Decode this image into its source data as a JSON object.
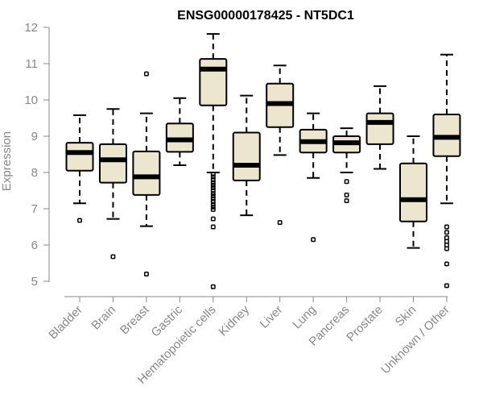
{
  "chart_data": {
    "type": "boxplot",
    "title": "ENSG00000178425 - NT5DC1",
    "xlabel": "",
    "ylabel": "Expression",
    "ylim": [
      4.8,
      12.1
    ],
    "yticks": [
      5,
      6,
      7,
      8,
      9,
      10,
      11,
      12
    ],
    "categories": [
      "Bladder",
      "Brain",
      "Breast",
      "Gastric",
      "Hematopoietic cells",
      "Kidney",
      "Liver",
      "Lung",
      "Pancreas",
      "Prostate",
      "Skin",
      "Unknown / Other"
    ],
    "series": [
      {
        "whisker_low": 7.15,
        "q1": 8.05,
        "median": 8.55,
        "q3": 8.82,
        "whisker_high": 9.58,
        "outliers": [
          6.68
        ]
      },
      {
        "whisker_low": 6.72,
        "q1": 7.72,
        "median": 8.35,
        "q3": 8.78,
        "whisker_high": 9.75,
        "outliers": [
          5.68
        ]
      },
      {
        "whisker_low": 6.52,
        "q1": 7.38,
        "median": 7.88,
        "q3": 8.58,
        "whisker_high": 9.63,
        "outliers": [
          10.72,
          5.2
        ]
      },
      {
        "whisker_low": 8.2,
        "q1": 8.57,
        "median": 8.9,
        "q3": 9.35,
        "whisker_high": 10.05,
        "outliers": []
      },
      {
        "whisker_low": 8.0,
        "q1": 9.85,
        "median": 10.85,
        "q3": 11.13,
        "whisker_high": 11.82,
        "outliers": [
          7.95,
          7.88,
          7.8,
          7.72,
          7.65,
          7.58,
          7.5,
          7.42,
          7.35,
          7.28,
          7.2,
          7.12,
          7.05,
          6.98,
          6.72,
          6.5,
          4.85
        ]
      },
      {
        "whisker_low": 6.82,
        "q1": 7.78,
        "median": 8.2,
        "q3": 9.1,
        "whisker_high": 10.12,
        "outliers": []
      },
      {
        "whisker_low": 8.48,
        "q1": 9.25,
        "median": 9.9,
        "q3": 10.45,
        "whisker_high": 10.95,
        "outliers": [
          6.62
        ]
      },
      {
        "whisker_low": 7.85,
        "q1": 8.55,
        "median": 8.85,
        "q3": 9.18,
        "whisker_high": 9.63,
        "outliers": [
          6.15
        ]
      },
      {
        "whisker_low": 8.0,
        "q1": 8.55,
        "median": 8.82,
        "q3": 9.0,
        "whisker_high": 9.22,
        "outliers": [
          7.75,
          7.38,
          7.22
        ]
      },
      {
        "whisker_low": 8.1,
        "q1": 8.78,
        "median": 9.38,
        "q3": 9.63,
        "whisker_high": 10.38,
        "outliers": []
      },
      {
        "whisker_low": 5.92,
        "q1": 6.65,
        "median": 7.25,
        "q3": 8.25,
        "whisker_high": 9.0,
        "outliers": []
      },
      {
        "whisker_low": 7.15,
        "q1": 8.45,
        "median": 8.97,
        "q3": 9.6,
        "whisker_high": 11.25,
        "outliers": [
          6.5,
          6.35,
          6.2,
          6.1,
          6.0,
          5.9,
          5.48,
          4.88
        ]
      }
    ],
    "box_fill": "#ede6cf",
    "box_stroke": "#000000",
    "axis_color": "#888888",
    "grid": false,
    "legend": "none"
  }
}
